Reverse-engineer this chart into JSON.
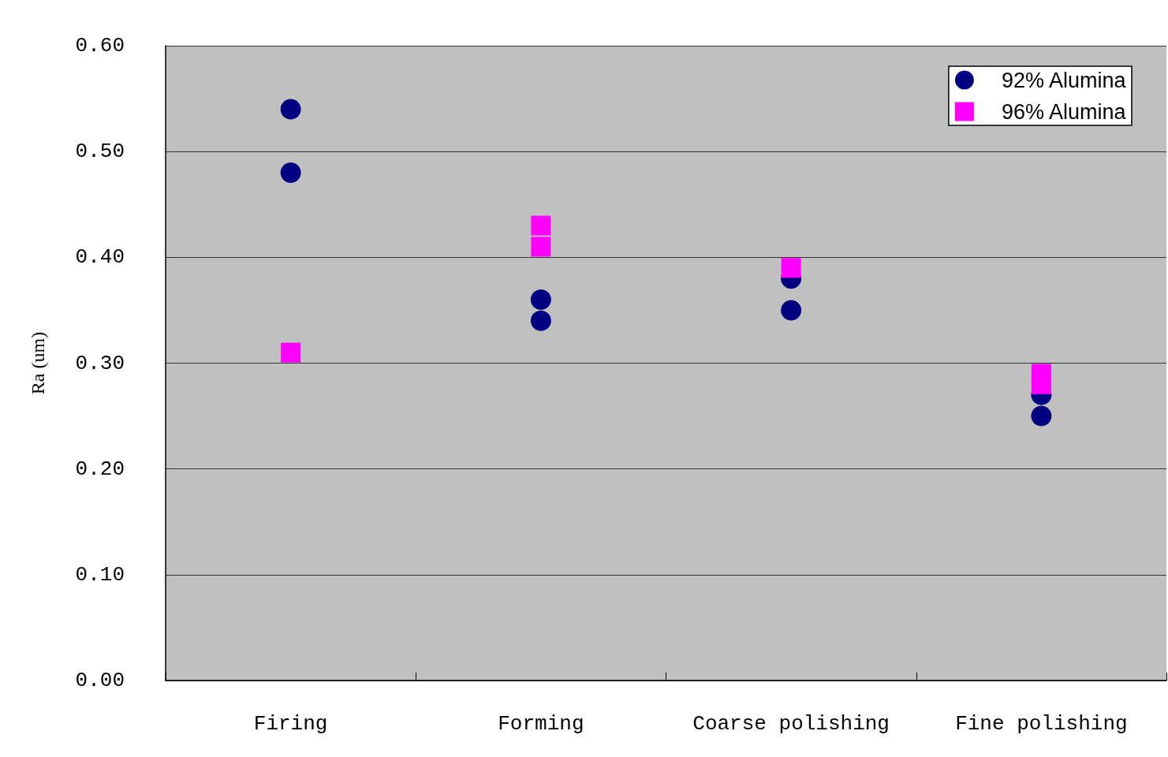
{
  "chart_data": {
    "type": "scatter",
    "ylabel": "Ra (um)",
    "categories": [
      "Firing",
      "Forming",
      "Coarse polishing",
      "Fine polishing"
    ],
    "series": [
      {
        "name": "92% Alumina",
        "color": "#000080",
        "marker": "circle",
        "x": [
          "Firing",
          "Firing",
          "Forming",
          "Forming",
          "Coarse polishing",
          "Coarse polishing",
          "Fine polishing",
          "Fine polishing"
        ],
        "values": [
          0.54,
          0.48,
          0.36,
          0.34,
          0.38,
          0.35,
          0.27,
          0.25
        ]
      },
      {
        "name": "96% Alumina",
        "color": "#ff00ff",
        "marker": "square",
        "x": [
          "Firing",
          "Forming",
          "Forming",
          "Coarse polishing",
          "Fine polishing",
          "Fine polishing"
        ],
        "values": [
          0.31,
          0.43,
          0.41,
          0.39,
          0.29,
          0.28
        ]
      }
    ],
    "ylim": [
      0,
      0.6
    ],
    "yticks": [
      {
        "value": 0,
        "label": "0.00"
      },
      {
        "value": 0.1,
        "label": "0.10"
      },
      {
        "value": 0.2,
        "label": "0.20"
      },
      {
        "value": 0.3,
        "label": "0.30"
      },
      {
        "value": 0.4,
        "label": "0.40"
      },
      {
        "value": 0.5,
        "label": "0.50"
      },
      {
        "value": 0.6,
        "label": "0.60"
      }
    ],
    "grid": "y",
    "legend": "top right"
  }
}
